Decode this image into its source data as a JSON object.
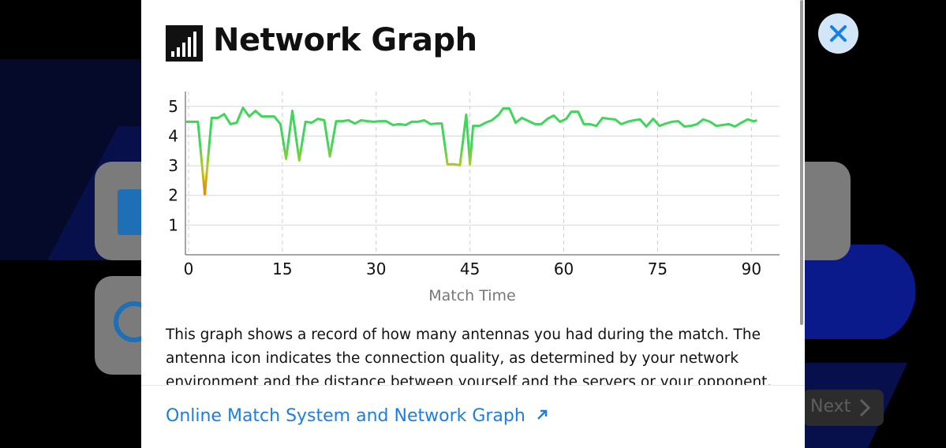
{
  "header": {
    "title": "Network Graph"
  },
  "chart_data": {
    "type": "line",
    "x_label": "Match Time",
    "xlim": [
      -0.5,
      94.5
    ],
    "xticks": [
      0,
      15,
      30,
      45,
      60,
      75,
      90
    ],
    "ylim": [
      0,
      5.5
    ],
    "yticks": [
      1,
      2,
      3,
      4,
      5
    ],
    "grid": true,
    "colors": [
      "#e8820e",
      "#bcc81f",
      "#3fd65a"
    ],
    "series": [
      {
        "name": "Antennas",
        "x": [
          -0.5,
          1.5,
          2.6,
          3.7,
          4.7,
          5.7,
          6.7,
          7.7,
          8.7,
          9.7,
          10.7,
          11.7,
          13.7,
          14.7,
          15.6,
          16.6,
          17.7,
          18.7,
          19.7,
          20.7,
          21.7,
          22.6,
          23.6,
          24.6,
          25.6,
          26.6,
          27.6,
          28.6,
          29.6,
          30.6,
          31.6,
          32.7,
          33.7,
          34.7,
          35.7,
          36.7,
          37.7,
          38.7,
          39.7,
          40.5,
          41.4,
          42.4,
          43.4,
          44.4,
          45.0,
          45.5,
          46.5,
          47.5,
          48.5,
          49.6,
          50.3,
          51.3,
          52.3,
          53.3,
          54.4,
          55.4,
          56.4,
          57.4,
          58.4,
          59.4,
          60.4,
          61.2,
          62.3,
          63.2,
          64.2,
          65.2,
          66.2,
          67.2,
          68.2,
          69.2,
          70.2,
          71.2,
          72.2,
          73.2,
          74.3,
          75.3,
          76.3,
          77.3,
          78.3,
          79.3,
          80.3,
          81.3,
          82.3,
          83.4,
          84.4,
          85.4,
          86.4,
          87.4,
          88.4,
          89.4,
          90.4,
          90.9
        ],
        "values": [
          4.48,
          4.48,
          2.04,
          4.61,
          4.61,
          4.74,
          4.4,
          4.45,
          4.95,
          4.66,
          4.85,
          4.66,
          4.66,
          4.4,
          3.23,
          4.85,
          3.18,
          4.48,
          4.45,
          4.58,
          4.53,
          3.31,
          4.5,
          4.5,
          4.53,
          4.42,
          4.53,
          4.5,
          4.48,
          4.5,
          4.5,
          4.37,
          4.4,
          4.37,
          4.48,
          4.48,
          4.53,
          4.4,
          4.42,
          4.42,
          3.05,
          3.05,
          3.02,
          4.72,
          3.05,
          4.34,
          4.34,
          4.45,
          4.53,
          4.72,
          4.93,
          4.93,
          4.45,
          4.61,
          4.5,
          4.4,
          4.4,
          4.58,
          4.69,
          4.48,
          4.58,
          4.82,
          4.82,
          4.4,
          4.4,
          4.34,
          4.61,
          4.58,
          4.56,
          4.4,
          4.48,
          4.53,
          4.56,
          4.32,
          4.58,
          4.34,
          4.42,
          4.48,
          4.5,
          4.32,
          4.34,
          4.4,
          4.56,
          4.48,
          4.34,
          4.37,
          4.4,
          4.32,
          4.45,
          4.56,
          4.5,
          4.53
        ]
      }
    ]
  },
  "description": "This graph shows a record of how many antennas you had during the match. The antenna icon indicates the connection quality, as determined by your network environment and the distance between yourself and the servers or your opponent.",
  "link": "Online Match System and Network Graph",
  "next_button": "Next"
}
